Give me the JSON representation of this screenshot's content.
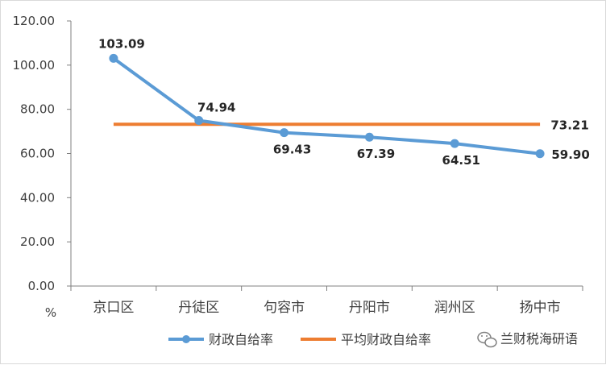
{
  "chart_data": {
    "type": "line",
    "categories": [
      "京口区",
      "丹徒区",
      "句容市",
      "丹阳市",
      "润州区",
      "扬中市"
    ],
    "series": [
      {
        "name": "财政自给率",
        "values": [
          103.09,
          74.94,
          69.43,
          67.39,
          64.51,
          59.9
        ],
        "color": "#5b9bd5"
      },
      {
        "name": "平均财政自给率",
        "values": [
          73.21,
          73.21,
          73.21,
          73.21,
          73.21,
          73.21
        ],
        "color": "#ed7d31"
      }
    ],
    "data_labels": [
      "103.09",
      "74.94",
      "69.43",
      "67.39",
      "64.51",
      "59.90"
    ],
    "average_label": "73.21",
    "y_ticks": [
      "0.00",
      "20.00",
      "40.00",
      "60.00",
      "80.00",
      "100.00",
      "120.00"
    ],
    "ylabel": "%",
    "ylim": [
      0,
      120
    ],
    "grid": false,
    "legend_position": "bottom"
  },
  "watermark": {
    "text": "兰财税海研语",
    "icon": "wechat-icon"
  }
}
